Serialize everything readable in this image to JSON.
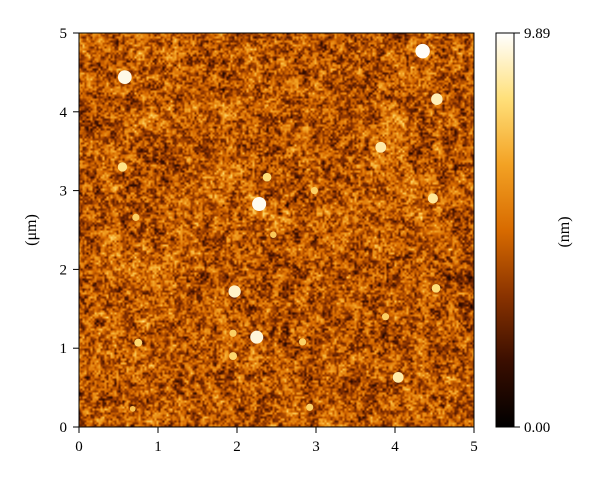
{
  "chart_data": {
    "type": "heatmap",
    "title": "",
    "xlabel": "",
    "ylabel": "(μm)",
    "xlim": [
      0,
      5
    ],
    "ylim": [
      0,
      5
    ],
    "x_ticks": [
      "0",
      "1",
      "2",
      "3",
      "4",
      "5"
    ],
    "y_ticks": [
      "0",
      "1",
      "2",
      "3",
      "4",
      "5"
    ],
    "colorbar": {
      "label": "(nm)",
      "min_label": "0.00",
      "max_label": "9.89",
      "min": 0.0,
      "max": 9.89,
      "colors": [
        "#000000",
        "#3a0e00",
        "#8a3300",
        "#d86b00",
        "#f3a224",
        "#ffe07a",
        "#ffffff"
      ]
    },
    "grid": false,
    "features": [
      {
        "x": 0.58,
        "y": 4.44,
        "height": 9.6
      },
      {
        "x": 4.35,
        "y": 4.77,
        "height": 9.8
      },
      {
        "x": 4.53,
        "y": 4.16,
        "height": 9.0
      },
      {
        "x": 3.82,
        "y": 3.55,
        "height": 8.8
      },
      {
        "x": 0.55,
        "y": 3.3,
        "height": 8.4
      },
      {
        "x": 2.38,
        "y": 3.17,
        "height": 8.2
      },
      {
        "x": 2.98,
        "y": 3.0,
        "height": 7.8
      },
      {
        "x": 2.28,
        "y": 2.83,
        "height": 9.7
      },
      {
        "x": 4.48,
        "y": 2.9,
        "height": 8.6
      },
      {
        "x": 0.72,
        "y": 2.66,
        "height": 7.8
      },
      {
        "x": 2.46,
        "y": 2.44,
        "height": 7.6
      },
      {
        "x": 1.97,
        "y": 1.72,
        "height": 9.2
      },
      {
        "x": 4.52,
        "y": 1.76,
        "height": 8.2
      },
      {
        "x": 1.95,
        "y": 1.19,
        "height": 7.8
      },
      {
        "x": 2.25,
        "y": 1.14,
        "height": 9.4
      },
      {
        "x": 0.75,
        "y": 1.07,
        "height": 8.0
      },
      {
        "x": 1.95,
        "y": 0.9,
        "height": 8.0
      },
      {
        "x": 2.83,
        "y": 1.08,
        "height": 7.8
      },
      {
        "x": 3.88,
        "y": 1.4,
        "height": 7.8
      },
      {
        "x": 4.04,
        "y": 0.63,
        "height": 8.8
      },
      {
        "x": 2.92,
        "y": 0.25,
        "height": 7.8
      },
      {
        "x": 0.68,
        "y": 0.23,
        "height": 7.4
      }
    ]
  }
}
